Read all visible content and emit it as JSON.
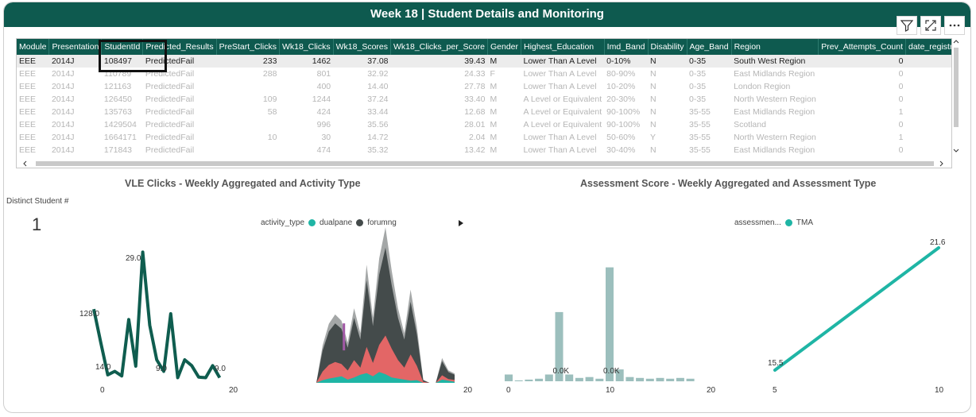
{
  "header": {
    "title": "Week 18 | Student Details and Monitoring"
  },
  "table": {
    "columns": [
      "Module",
      "Presentation",
      "StudentId",
      "Predicted_Results",
      "PreStart_Clicks",
      "Wk18_Clicks",
      "Wk18_Scores",
      "Wk18_Clicks_per_Score",
      "Gender",
      "Highest_Education",
      "Imd_Band",
      "Disability",
      "Age_Band",
      "Region",
      "Prev_Attempts_Count",
      "date_registr"
    ],
    "rows": [
      [
        "EEE",
        "2014J",
        "108497",
        "PredictedFail",
        "233",
        "1462",
        "37.08",
        "39.43",
        "M",
        "Lower Than A Level",
        "0-10%",
        "N",
        "0-35",
        "South West Region",
        "0",
        ""
      ],
      [
        "EEE",
        "2014J",
        "110789",
        "PredictedFail",
        "288",
        "801",
        "32.92",
        "24.33",
        "F",
        "Lower Than A Level",
        "80-90%",
        "N",
        "0-35",
        "East Midlands Region",
        "0",
        ""
      ],
      [
        "EEE",
        "2014J",
        "121163",
        "PredictedFail",
        "",
        "400",
        "14.40",
        "27.78",
        "M",
        "Lower Than A Level",
        "10-20%",
        "N",
        "0-35",
        "London Region",
        "0",
        ""
      ],
      [
        "EEE",
        "2014J",
        "126450",
        "PredictedFail",
        "109",
        "1244",
        "37.24",
        "33.40",
        "M",
        "A Level or Equivalent",
        "20-30%",
        "N",
        "0-35",
        "North Western Region",
        "0",
        ""
      ],
      [
        "EEE",
        "2014J",
        "135763",
        "PredictedFail",
        "58",
        "424",
        "33.44",
        "12.68",
        "M",
        "A Level or Equivalent",
        "90-100%",
        "N",
        "35-55",
        "East Midlands Region",
        "1",
        ""
      ],
      [
        "EEE",
        "2014J",
        "1429504",
        "PredictedFail",
        "",
        "996",
        "35.56",
        "28.01",
        "M",
        "A Level or Equivalent",
        "90-100%",
        "N",
        "35-55",
        "Scotland",
        "0",
        ""
      ],
      [
        "EEE",
        "2014J",
        "1664171",
        "PredictedFail",
        "10",
        "30",
        "14.72",
        "2.04",
        "M",
        "Lower Than A Level",
        "50-60%",
        "Y",
        "35-55",
        "North Western Region",
        "1",
        ""
      ],
      [
        "EEE",
        "2014J",
        "171843",
        "PredictedFail",
        "",
        "474",
        "35.32",
        "13.42",
        "M",
        "Lower Than A Level",
        "30-40%",
        "N",
        "35-55",
        "East Midlands Region",
        "0",
        ""
      ]
    ]
  },
  "vle": {
    "title": "VLE Clicks - Weekly Aggregated and Activity Type",
    "card_label": "Distinct Student #",
    "card_value": "1",
    "legend_title": "activity_type",
    "legend": [
      {
        "name": "dualpane",
        "color": "#1fb5a5"
      },
      {
        "name": "forumng",
        "color": "#444b4b"
      }
    ],
    "x_ticks": [
      "0",
      "20"
    ],
    "line_labels": [
      "128.0",
      "29.0",
      "14.0",
      "9.0",
      "9.0"
    ],
    "area_x_ticks": [
      "20"
    ]
  },
  "assess": {
    "title": "Assessment Score - Weekly Aggregated and Assessment Type",
    "legend_title": "assessmen...",
    "legend": [
      {
        "name": "TMA",
        "color": "#1fb5a5"
      }
    ],
    "bar_x_ticks": [
      "0",
      "10",
      "20"
    ],
    "bar_labels": [
      "0.0K",
      "0.0K"
    ],
    "line_x_ticks": [
      "5",
      "10"
    ],
    "line_labels": [
      "15.5",
      "21.6"
    ]
  },
  "chart_data": [
    {
      "type": "line",
      "title": "",
      "x": [
        0,
        1,
        2,
        3,
        4,
        5,
        6,
        7,
        8,
        9,
        10,
        11,
        12,
        13,
        14,
        15,
        16,
        17,
        18
      ],
      "values": [
        128,
        70,
        14,
        20,
        12,
        110,
        29,
        227,
        100,
        40,
        20,
        120,
        9,
        40,
        30,
        10,
        9,
        30,
        9
      ],
      "xlim": [
        0,
        20
      ]
    },
    {
      "type": "area",
      "title": "",
      "series": [
        {
          "name": "forumng",
          "values": [
            0,
            60,
            95,
            110,
            100,
            65,
            120,
            80,
            190,
            105,
            200,
            250,
            180,
            120,
            80,
            150,
            90,
            5,
            0,
            0,
            40,
            20,
            15
          ]
        },
        {
          "name": "dualpane",
          "values": [
            0,
            5,
            8,
            10,
            12,
            6,
            10,
            15,
            18,
            12,
            20,
            16,
            10,
            8,
            6,
            4,
            5,
            0,
            0,
            0,
            6,
            4,
            2
          ]
        }
      ],
      "x": [
        0,
        1,
        2,
        3,
        4,
        5,
        6,
        7,
        8,
        9,
        10,
        11,
        12,
        13,
        14,
        15,
        16,
        17,
        18,
        19,
        20,
        21,
        22
      ]
    },
    {
      "type": "bar",
      "title": "",
      "x": [
        0,
        1,
        2,
        3,
        4,
        5,
        6,
        7,
        8,
        9,
        10,
        11,
        12,
        13,
        14,
        15,
        16,
        17,
        18
      ],
      "values": [
        8,
        1,
        2,
        3,
        8,
        82,
        8,
        4,
        5,
        3,
        135,
        14,
        5,
        4,
        3,
        4,
        3,
        4,
        3
      ],
      "xlim": [
        0,
        20
      ]
    },
    {
      "type": "line",
      "title": "",
      "series": [
        {
          "name": "TMA",
          "x": [
            5,
            10
          ],
          "values": [
            15.5,
            21.6
          ]
        }
      ]
    }
  ]
}
